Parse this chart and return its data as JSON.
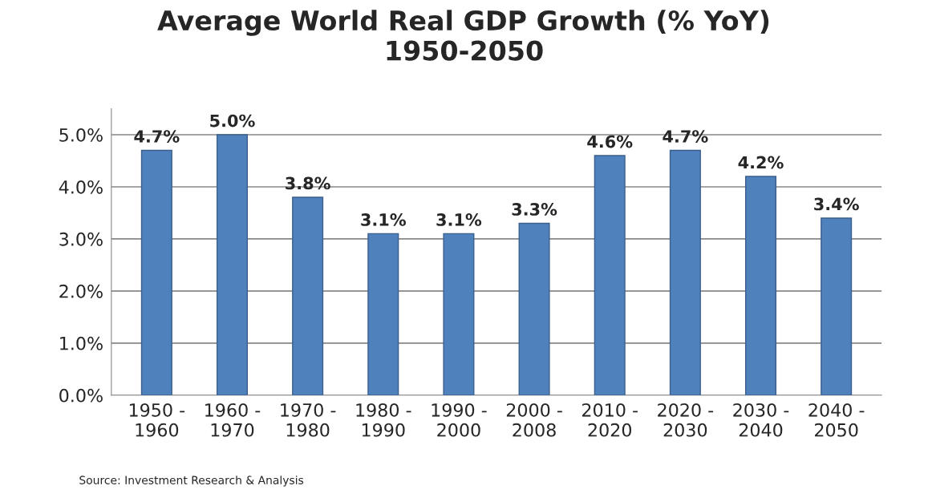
{
  "chart_data": {
    "type": "bar",
    "title": "Average World Real GDP Growth (% YoY)\n1950-2050",
    "categories": [
      "1950 - 1960",
      "1960 - 1970",
      "1970 - 1980",
      "1980 - 1990",
      "1990 - 2000",
      "2000 - 2008",
      "2010 - 2020",
      "2020 - 2030",
      "2030 - 2040",
      "2040 - 2050"
    ],
    "values": [
      4.7,
      5.0,
      3.8,
      3.1,
      3.1,
      3.3,
      4.6,
      4.7,
      4.2,
      3.4
    ],
    "value_labels": [
      "4.7%",
      "5.0%",
      "3.8%",
      "3.1%",
      "3.1%",
      "3.3%",
      "4.6%",
      "4.7%",
      "4.2%",
      "3.4%"
    ],
    "color": "#4f81bd",
    "ylim": [
      0,
      5.5
    ],
    "yticks": [
      {
        "value": 0,
        "label": "0.0%"
      },
      {
        "value": 1,
        "label": "1.0%"
      },
      {
        "value": 2,
        "label": "2.0%"
      },
      {
        "value": 3,
        "label": "3.0%"
      },
      {
        "value": 4,
        "label": "4.0%"
      },
      {
        "value": 5,
        "label": "5.0%"
      }
    ],
    "grid": "y",
    "annotations": [
      "Source: Investment Research & Analysis"
    ]
  }
}
